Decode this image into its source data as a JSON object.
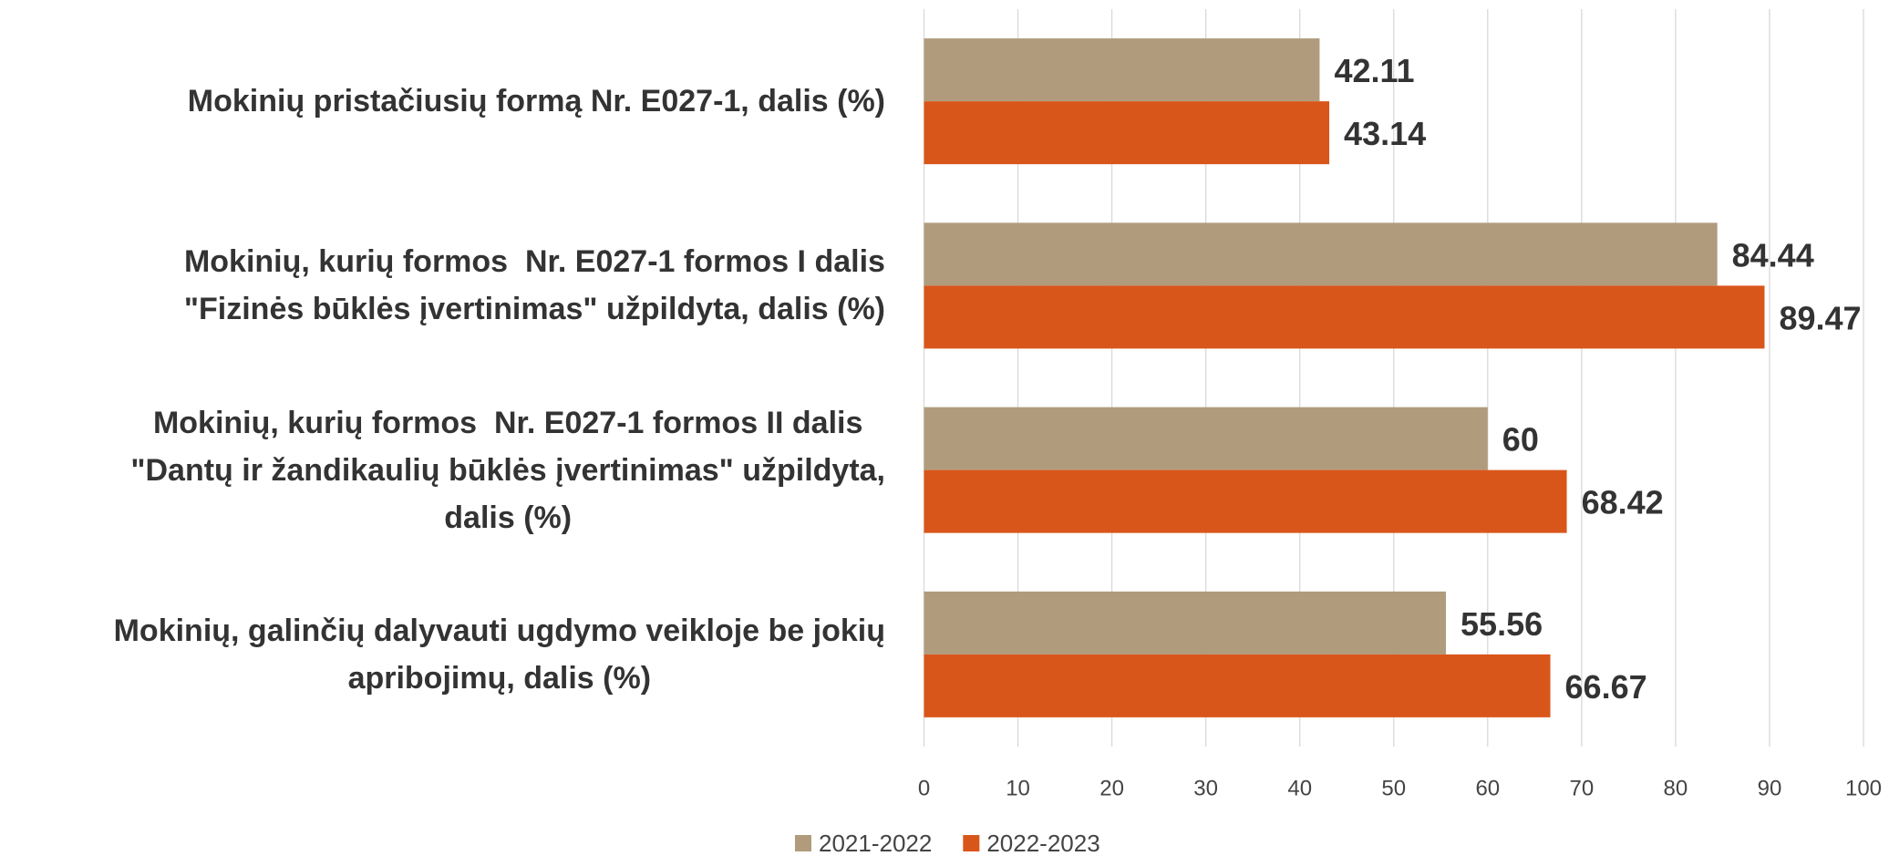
{
  "chart_data": {
    "type": "bar",
    "orientation": "horizontal",
    "categories": [
      "Mokinių pristačiusių formą Nr. E027-1, dalis (%)",
      "Mokinių, kurių formos  Nr. E027-1 formos I dalis\n\"Fizinės būklės įvertinimas\" užpildyta, dalis (%)",
      "Mokinių, kurių formos  Nr. E027-1 formos II dalis\n\"Dantų ir žandikaulių būklės įvertinimas\" užpildyta,\ndalis (%)",
      "Mokinių, galinčių dalyvauti ugdymo veikloje be jokių\napribojimų, dalis (%)"
    ],
    "series": [
      {
        "name": "2021-2022",
        "color": "#b09c7c",
        "values": [
          42.11,
          84.44,
          60,
          55.56
        ]
      },
      {
        "name": "2022-2023",
        "color": "#d9561b",
        "values": [
          43.14,
          89.47,
          68.42,
          66.67
        ]
      }
    ],
    "xlim": [
      0,
      100
    ],
    "xticks": [
      0,
      10,
      20,
      30,
      40,
      50,
      60,
      70,
      80,
      90,
      100
    ],
    "grid": true,
    "legend": "bottom"
  }
}
